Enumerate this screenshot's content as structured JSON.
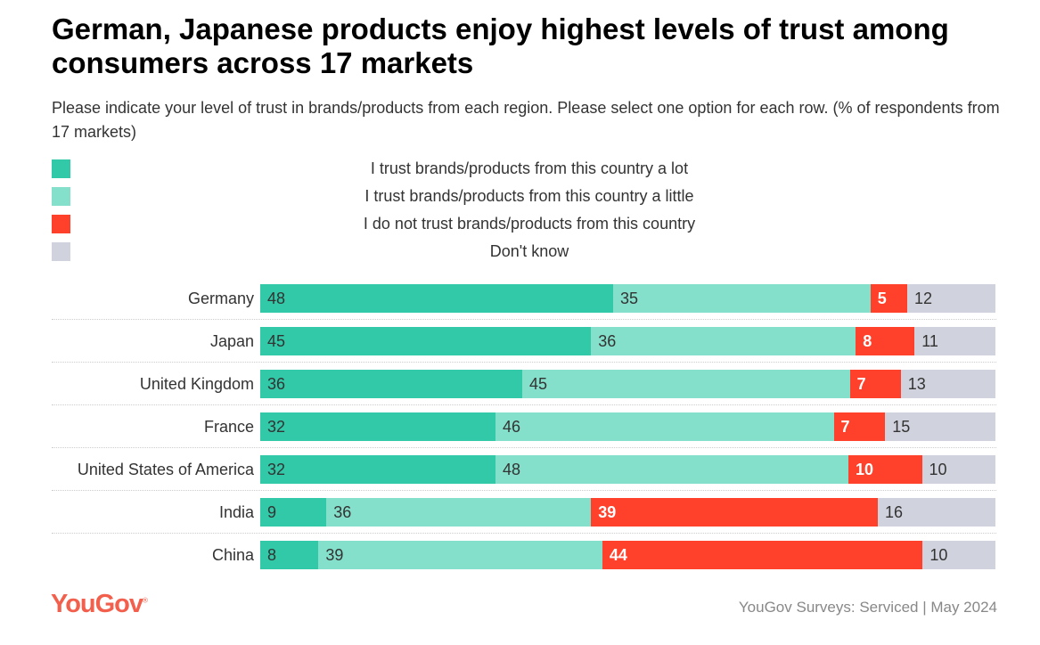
{
  "title": "German, Japanese products enjoy highest levels of trust among consumers across 17 markets",
  "subtitle": "Please indicate your level of trust in brands/products from each region. Please select one option for each row. (% of respondents from 17 markets)",
  "source": "YouGov Surveys: Serviced | May 2024",
  "logo": "YouGov",
  "chart_data": {
    "type": "bar",
    "orientation": "horizontal",
    "stacked": true,
    "categories": [
      "Germany",
      "Japan",
      "United Kingdom",
      "France",
      "United States of America",
      "India",
      "China"
    ],
    "series": [
      {
        "name": "I trust brands/products from this country a lot",
        "color": "#32c9a8",
        "values": [
          48,
          45,
          36,
          32,
          32,
          9,
          8
        ]
      },
      {
        "name": "I trust brands/products from this country a little",
        "color": "#84dfcb",
        "values": [
          35,
          36,
          45,
          46,
          48,
          36,
          39
        ]
      },
      {
        "name": "I do not trust brands/products from this country",
        "color": "#ff412c",
        "values": [
          5,
          8,
          7,
          7,
          10,
          39,
          44
        ]
      },
      {
        "name": "Don't know",
        "color": "#d0d3dd",
        "values": [
          12,
          11,
          13,
          15,
          10,
          16,
          10
        ]
      }
    ],
    "legend": "top",
    "grid": false
  }
}
